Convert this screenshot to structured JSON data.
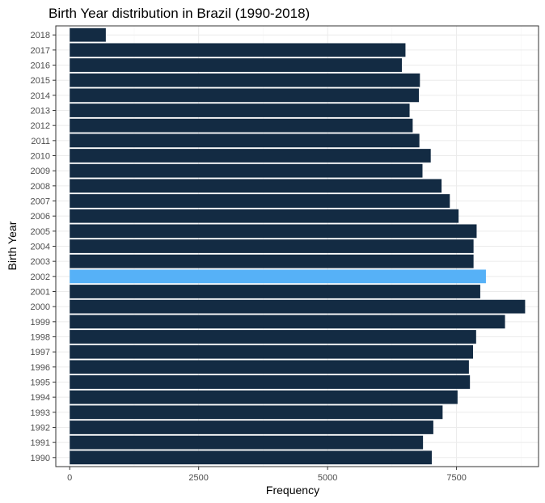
{
  "chart_data": {
    "type": "bar",
    "orientation": "horizontal",
    "title": "Birth Year distribution in Brazil (1990-2018)",
    "xlabel": "Frequency",
    "ylabel": "Birth Year",
    "xlim": [
      0,
      9000
    ],
    "x_ticks": [
      0,
      2500,
      5000,
      7500
    ],
    "x_tick_labels": [
      "0",
      "2500",
      "5000",
      "7500"
    ],
    "grid": true,
    "legend": "none",
    "categories": [
      "1990",
      "1991",
      "1992",
      "1993",
      "1994",
      "1995",
      "1996",
      "1997",
      "1998",
      "1999",
      "2000",
      "2001",
      "2002",
      "2003",
      "2004",
      "2005",
      "2006",
      "2007",
      "2008",
      "2009",
      "2010",
      "2011",
      "2012",
      "2013",
      "2014",
      "2015",
      "2016",
      "2017",
      "2018"
    ],
    "values": [
      7020,
      6850,
      7050,
      7230,
      7520,
      7760,
      7740,
      7820,
      7880,
      8440,
      8830,
      7960,
      8070,
      7830,
      7830,
      7890,
      7540,
      7370,
      7210,
      6840,
      7000,
      6780,
      6650,
      6590,
      6770,
      6790,
      6440,
      6510,
      700
    ],
    "highlight": "2002",
    "colors": {
      "bar": "#132b43",
      "highlight": "#56b1f7"
    }
  }
}
